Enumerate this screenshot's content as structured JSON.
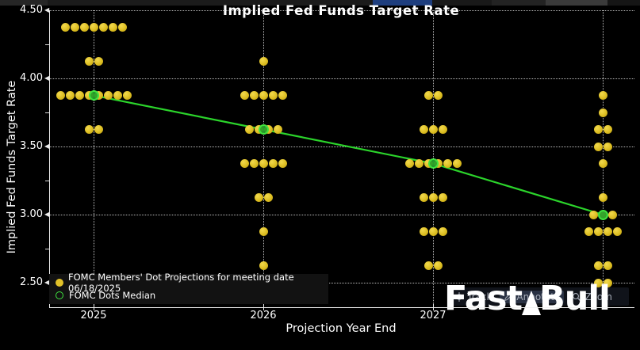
{
  "title": "Implied Fed Funds Target Rate",
  "axes": {
    "x_label": "Projection Year End",
    "y_label": "Implied Fed Funds Target Rate"
  },
  "legend": {
    "entries": [
      {
        "marker": "yellow-dot",
        "label": "FOMC Members' Dot Projections for meeting date 06/18/2025"
      },
      {
        "marker": "green-circle",
        "label": "FOMC Dots Median"
      }
    ]
  },
  "toolbar": {
    "items": [
      {
        "icon": "track-icon",
        "label": "Track"
      },
      {
        "icon": "annotate-icon",
        "label": "Annotate"
      },
      {
        "icon": "zoom-icon",
        "label": "Zoom"
      }
    ]
  },
  "watermark": {
    "part1": "Fast",
    "part2": "Bull"
  },
  "colors": {
    "background": "#000000",
    "dot": "#ddbe22",
    "median_ring": "#3fe43f",
    "median_line": "#2bd42b",
    "grid": "#b9b9b9",
    "top_bar_accent": "#1e3e7e"
  },
  "chart_data": {
    "type": "scatter",
    "title": "Implied Fed Funds Target Rate",
    "xlabel": "Projection Year End",
    "ylabel": "Implied Fed Funds Target Rate",
    "ylim": [
      2.32,
      4.5
    ],
    "yticks": [
      4.5,
      4.0,
      3.5,
      3.0,
      2.5
    ],
    "ytick_minor_step": 0.25,
    "grid": "dotted",
    "legend_position": "bottom-left",
    "series_name": "FOMC Members' Dot Projections for meeting date 06/18/2025",
    "meeting_date": "06/18/2025",
    "columns": [
      {
        "label": "2025",
        "median": 3.875,
        "dots": [
          [
            4.375,
            7
          ],
          [
            4.125,
            2
          ],
          [
            3.875,
            8
          ],
          [
            3.625,
            2
          ]
        ]
      },
      {
        "label": "2026",
        "median": 3.625,
        "dots": [
          [
            4.125,
            1
          ],
          [
            3.875,
            5
          ],
          [
            3.625,
            4
          ],
          [
            3.375,
            5
          ],
          [
            3.125,
            2
          ],
          [
            2.875,
            1
          ],
          [
            2.625,
            1
          ]
        ]
      },
      {
        "label": "2027",
        "median": 3.375,
        "dots": [
          [
            3.875,
            2
          ],
          [
            3.625,
            3
          ],
          [
            3.375,
            6
          ],
          [
            3.125,
            3
          ],
          [
            2.875,
            3
          ],
          [
            2.625,
            2
          ]
        ]
      },
      {
        "label": "",
        "median": 3.0,
        "dots": [
          [
            3.875,
            1
          ],
          [
            3.75,
            1
          ],
          [
            3.625,
            2
          ],
          [
            3.5,
            2
          ],
          [
            3.375,
            1
          ],
          [
            3.125,
            1
          ],
          [
            3.0,
            3
          ],
          [
            2.875,
            4
          ],
          [
            2.625,
            2
          ],
          [
            2.5,
            2
          ]
        ]
      }
    ],
    "median_series": {
      "name": "FOMC Dots Median",
      "values": [
        3.875,
        3.625,
        3.375,
        3.0
      ]
    }
  }
}
